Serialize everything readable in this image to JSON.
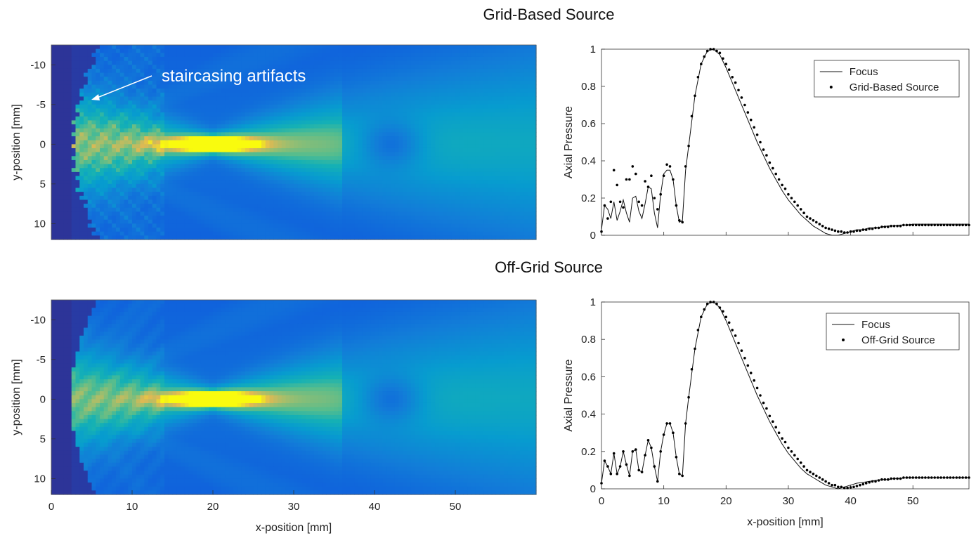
{
  "sections": [
    {
      "title": "Grid-Based Source",
      "annotation": "staircasing artifacts"
    },
    {
      "title": "Off-Grid Source"
    }
  ],
  "chart_data": [
    {
      "type": "heatmap",
      "panel": "top-left",
      "xlabel": "",
      "ylabel": "y-position [mm]",
      "xlim": [
        0,
        60
      ],
      "ylim": [
        -12.5,
        12
      ],
      "yticks": [
        -10,
        -5,
        0,
        5,
        10
      ],
      "colormap": "parula",
      "annotation": "staircasing artifacts"
    },
    {
      "type": "line",
      "panel": "top-right",
      "xlabel": "",
      "ylabel": "Axial Pressure",
      "xlim": [
        0,
        59
      ],
      "ylim": [
        0,
        1
      ],
      "yticks": [
        0,
        0.2,
        0.4,
        0.6,
        0.8,
        1
      ],
      "legend_position": "top-right",
      "series": [
        {
          "name": "Focus",
          "style": "line",
          "x": [
            0,
            0.5,
            1,
            1.5,
            2,
            2.5,
            3,
            3.5,
            4,
            4.5,
            5,
            5.5,
            6,
            6.5,
            7,
            7.5,
            8,
            8.5,
            9,
            9.5,
            10,
            10.5,
            11,
            11.5,
            12,
            12.5,
            13,
            13.5,
            14,
            15,
            16,
            17,
            18,
            19,
            20,
            21,
            22,
            23,
            24,
            25,
            26,
            27,
            28,
            29,
            30,
            31,
            32,
            33,
            34,
            35,
            36,
            37,
            38,
            39,
            40,
            41,
            42,
            43,
            44,
            45,
            46,
            47,
            48,
            49,
            50,
            51,
            52,
            53,
            54,
            55,
            56,
            57,
            58,
            59
          ],
          "y": [
            0.03,
            0.16,
            0.14,
            0.09,
            0.18,
            0.08,
            0.13,
            0.19,
            0.12,
            0.07,
            0.2,
            0.21,
            0.13,
            0.09,
            0.17,
            0.26,
            0.25,
            0.12,
            0.04,
            0.22,
            0.33,
            0.35,
            0.35,
            0.3,
            0.16,
            0.07,
            0.08,
            0.35,
            0.48,
            0.75,
            0.92,
            0.99,
            1.0,
            0.97,
            0.9,
            0.82,
            0.74,
            0.66,
            0.58,
            0.5,
            0.43,
            0.36,
            0.3,
            0.24,
            0.19,
            0.15,
            0.11,
            0.08,
            0.05,
            0.03,
            0.01,
            0.0,
            0.0,
            0.01,
            0.02,
            0.03,
            0.03,
            0.04,
            0.04,
            0.045,
            0.05,
            0.05,
            0.055,
            0.055,
            0.06,
            0.06,
            0.06,
            0.06,
            0.06,
            0.06,
            0.06,
            0.06,
            0.06,
            0.06
          ]
        },
        {
          "name": "Grid-Based Source",
          "style": "dots",
          "x": [
            0,
            0.5,
            1,
            1.5,
            2,
            2.5,
            3,
            3.5,
            4,
            4.5,
            5,
            5.5,
            6,
            6.5,
            7,
            7.5,
            8,
            8.5,
            9,
            9.5,
            10,
            10.5,
            11,
            11.5,
            12,
            12.5,
            13,
            13.5,
            14,
            14.5,
            15,
            15.5,
            16,
            16.5,
            17,
            17.5,
            18,
            18.5,
            19,
            19.5,
            20,
            20.5,
            21,
            21.5,
            22,
            22.5,
            23,
            23.5,
            24,
            24.5,
            25,
            25.5,
            26,
            26.5,
            27,
            27.5,
            28,
            28.5,
            29,
            29.5,
            30,
            30.5,
            31,
            31.5,
            32,
            32.5,
            33,
            33.5,
            34,
            34.5,
            35,
            35.5,
            36,
            36.5,
            37,
            37.5,
            38,
            38.5,
            39,
            39.5,
            40,
            40.5,
            41,
            41.5,
            42,
            42.5,
            43,
            43.5,
            44,
            44.5,
            45,
            45.5,
            46,
            46.5,
            47,
            47.5,
            48,
            48.5,
            49,
            49.5,
            50,
            50.5,
            51,
            51.5,
            52,
            52.5,
            53,
            53.5,
            54,
            54.5,
            55,
            55.5,
            56,
            56.5,
            57,
            57.5,
            58,
            58.5,
            59
          ],
          "y": [
            0.02,
            0.16,
            0.09,
            0.18,
            0.35,
            0.27,
            0.18,
            0.15,
            0.3,
            0.3,
            0.37,
            0.33,
            0.18,
            0.16,
            0.29,
            0.26,
            0.32,
            0.2,
            0.14,
            0.22,
            0.32,
            0.38,
            0.37,
            0.3,
            0.16,
            0.08,
            0.07,
            0.37,
            0.48,
            0.64,
            0.75,
            0.85,
            0.92,
            0.96,
            0.99,
            1.0,
            1.0,
            0.99,
            0.98,
            0.95,
            0.92,
            0.89,
            0.85,
            0.82,
            0.78,
            0.74,
            0.7,
            0.66,
            0.62,
            0.58,
            0.54,
            0.5,
            0.46,
            0.43,
            0.39,
            0.36,
            0.33,
            0.3,
            0.27,
            0.25,
            0.22,
            0.2,
            0.18,
            0.16,
            0.14,
            0.12,
            0.1,
            0.09,
            0.08,
            0.07,
            0.06,
            0.05,
            0.04,
            0.035,
            0.03,
            0.025,
            0.02,
            0.02,
            0.015,
            0.015,
            0.02,
            0.02,
            0.025,
            0.025,
            0.03,
            0.03,
            0.035,
            0.035,
            0.04,
            0.04,
            0.045,
            0.045,
            0.045,
            0.05,
            0.05,
            0.05,
            0.05,
            0.055,
            0.055,
            0.055,
            0.055,
            0.055,
            0.055,
            0.055,
            0.055,
            0.055,
            0.055,
            0.055,
            0.055,
            0.055,
            0.055,
            0.055,
            0.055,
            0.055,
            0.055,
            0.055,
            0.055,
            0.055,
            0.055
          ]
        }
      ]
    },
    {
      "type": "heatmap",
      "panel": "bottom-left",
      "xlabel": "x-position [mm]",
      "ylabel": "y-position [mm]",
      "xlim": [
        0,
        60
      ],
      "ylim": [
        -12.5,
        12
      ],
      "xticks": [
        0,
        10,
        20,
        30,
        40,
        50
      ],
      "yticks": [
        -10,
        -5,
        0,
        5,
        10
      ],
      "colormap": "parula"
    },
    {
      "type": "line",
      "panel": "bottom-right",
      "xlabel": "x-position [mm]",
      "ylabel": "Axial Pressure",
      "xlim": [
        0,
        59
      ],
      "ylim": [
        0,
        1
      ],
      "xticks": [
        0,
        10,
        20,
        30,
        40,
        50
      ],
      "yticks": [
        0,
        0.2,
        0.4,
        0.6,
        0.8,
        1
      ],
      "legend_position": "top-right",
      "series": [
        {
          "name": "Focus",
          "style": "line",
          "x": [
            0,
            0.5,
            1,
            1.5,
            2,
            2.5,
            3,
            3.5,
            4,
            4.5,
            5,
            5.5,
            6,
            6.5,
            7,
            7.5,
            8,
            8.5,
            9,
            9.5,
            10,
            10.5,
            11,
            11.5,
            12,
            12.5,
            13,
            13.5,
            14,
            15,
            16,
            17,
            18,
            19,
            20,
            21,
            22,
            23,
            24,
            25,
            26,
            27,
            28,
            29,
            30,
            31,
            32,
            33,
            34,
            35,
            36,
            37,
            38,
            39,
            40,
            41,
            42,
            43,
            44,
            45,
            46,
            47,
            48,
            49,
            50,
            51,
            52,
            53,
            54,
            55,
            56,
            57,
            58,
            59
          ],
          "y": [
            0.03,
            0.15,
            0.12,
            0.08,
            0.19,
            0.08,
            0.12,
            0.2,
            0.13,
            0.07,
            0.2,
            0.21,
            0.1,
            0.09,
            0.18,
            0.26,
            0.22,
            0.12,
            0.04,
            0.2,
            0.29,
            0.35,
            0.35,
            0.3,
            0.17,
            0.08,
            0.07,
            0.35,
            0.49,
            0.75,
            0.92,
            0.99,
            1.0,
            0.97,
            0.9,
            0.82,
            0.74,
            0.66,
            0.58,
            0.5,
            0.43,
            0.36,
            0.3,
            0.24,
            0.19,
            0.15,
            0.11,
            0.08,
            0.06,
            0.04,
            0.02,
            0.01,
            0.0,
            0.01,
            0.02,
            0.03,
            0.035,
            0.04,
            0.045,
            0.05,
            0.05,
            0.055,
            0.055,
            0.06,
            0.06,
            0.06,
            0.06,
            0.06,
            0.06,
            0.06,
            0.06,
            0.06,
            0.06,
            0.06
          ]
        },
        {
          "name": "Off-Grid Source",
          "style": "dots",
          "x": [
            0,
            0.5,
            1,
            1.5,
            2,
            2.5,
            3,
            3.5,
            4,
            4.5,
            5,
            5.5,
            6,
            6.5,
            7,
            7.5,
            8,
            8.5,
            9,
            9.5,
            10,
            10.5,
            11,
            11.5,
            12,
            12.5,
            13,
            13.5,
            14,
            14.5,
            15,
            15.5,
            16,
            16.5,
            17,
            17.5,
            18,
            18.5,
            19,
            19.5,
            20,
            20.5,
            21,
            21.5,
            22,
            22.5,
            23,
            23.5,
            24,
            24.5,
            25,
            25.5,
            26,
            26.5,
            27,
            27.5,
            28,
            28.5,
            29,
            29.5,
            30,
            30.5,
            31,
            31.5,
            32,
            32.5,
            33,
            33.5,
            34,
            34.5,
            35,
            35.5,
            36,
            36.5,
            37,
            37.5,
            38,
            38.5,
            39,
            39.5,
            40,
            40.5,
            41,
            41.5,
            42,
            42.5,
            43,
            43.5,
            44,
            44.5,
            45,
            45.5,
            46,
            46.5,
            47,
            47.5,
            48,
            48.5,
            49,
            49.5,
            50,
            50.5,
            51,
            51.5,
            52,
            52.5,
            53,
            53.5,
            54,
            54.5,
            55,
            55.5,
            56,
            56.5,
            57,
            57.5,
            58,
            58.5,
            59
          ],
          "y": [
            0.03,
            0.15,
            0.12,
            0.08,
            0.19,
            0.08,
            0.12,
            0.2,
            0.13,
            0.07,
            0.2,
            0.21,
            0.1,
            0.09,
            0.18,
            0.26,
            0.22,
            0.12,
            0.04,
            0.2,
            0.29,
            0.35,
            0.35,
            0.3,
            0.17,
            0.08,
            0.07,
            0.35,
            0.49,
            0.64,
            0.75,
            0.85,
            0.92,
            0.96,
            0.99,
            1.0,
            1.0,
            0.99,
            0.97,
            0.95,
            0.92,
            0.89,
            0.85,
            0.82,
            0.78,
            0.74,
            0.7,
            0.66,
            0.62,
            0.58,
            0.54,
            0.5,
            0.46,
            0.43,
            0.39,
            0.36,
            0.33,
            0.3,
            0.27,
            0.25,
            0.22,
            0.2,
            0.18,
            0.16,
            0.14,
            0.12,
            0.1,
            0.09,
            0.08,
            0.07,
            0.06,
            0.05,
            0.04,
            0.03,
            0.02,
            0.02,
            0.01,
            0.01,
            0.005,
            0.005,
            0.008,
            0.01,
            0.015,
            0.02,
            0.025,
            0.03,
            0.035,
            0.04,
            0.04,
            0.045,
            0.05,
            0.05,
            0.05,
            0.055,
            0.055,
            0.055,
            0.055,
            0.06,
            0.06,
            0.06,
            0.06,
            0.06,
            0.06,
            0.06,
            0.06,
            0.06,
            0.06,
            0.06,
            0.06,
            0.06,
            0.06,
            0.06,
            0.06,
            0.06,
            0.06,
            0.06,
            0.06,
            0.06,
            0.06
          ]
        }
      ]
    }
  ]
}
